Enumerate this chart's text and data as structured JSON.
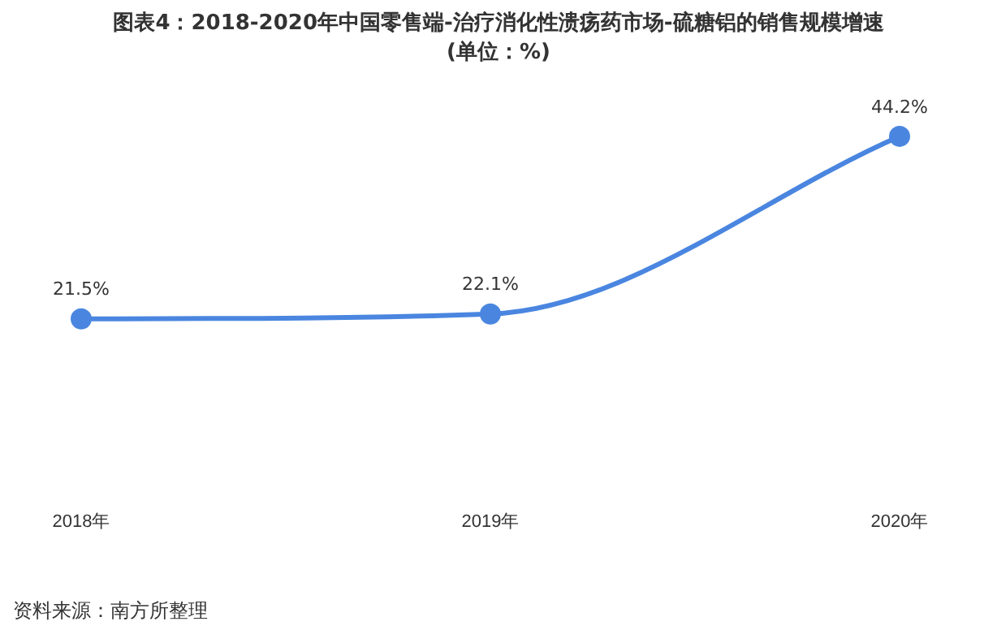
{
  "chart_data": {
    "type": "line",
    "title": "图表4：2018-2020年中国零售端-治疗消化性溃疡药市场-硫糖铝的销售规模增速",
    "subtitle": "(单位：%)",
    "categories": [
      "2018年",
      "2019年",
      "2020年"
    ],
    "series": [
      {
        "color": "#4a86e0",
        "values": [
          21.5,
          22.1,
          44.2
        ],
        "value_labels": [
          "21.5%",
          "22.1%",
          "44.2%"
        ]
      }
    ],
    "marker": "circle",
    "grid": false,
    "legend": false,
    "tick_labels": "x",
    "annotations": [
      "资料来源：南方所整理"
    ]
  }
}
